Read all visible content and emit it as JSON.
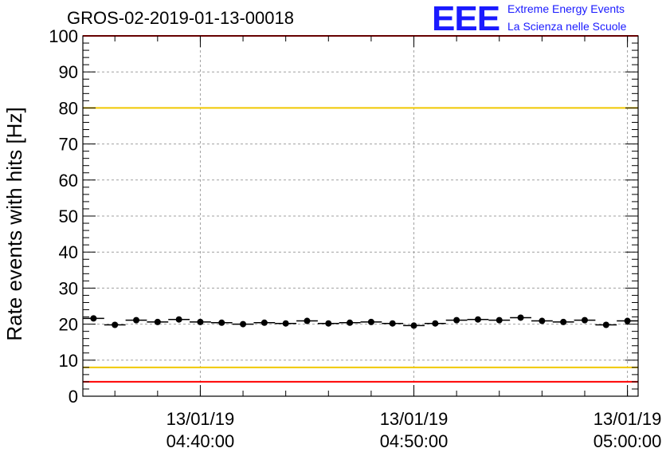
{
  "header": {
    "title": "GROS-02-2019-01-13-00018",
    "logo_text": "EEE",
    "logo_line1": "Extreme Energy Events",
    "logo_line2": "La Scienza nelle Scuole"
  },
  "colors": {
    "logo": "#1a1aff",
    "red_line": "#ff0000",
    "yellow_line": "#f0c800",
    "grid": "#a0a0a0",
    "points": "#000000"
  },
  "chart_data": {
    "type": "scatter",
    "title": "GROS-02-2019-01-13-00018",
    "ylabel": "Rate events with hits [Hz]",
    "xlabel": "",
    "ylim": [
      0,
      100
    ],
    "y_ticks": [
      0,
      10,
      20,
      30,
      40,
      50,
      60,
      70,
      80,
      90,
      100
    ],
    "x_range": [
      "04:34:30",
      "05:00:30"
    ],
    "x_ticks": [
      {
        "date": "13/01/19",
        "time": "04:40:00"
      },
      {
        "date": "13/01/19",
        "time": "04:50:00"
      },
      {
        "date": "13/01/19",
        "time": "05:00:00"
      }
    ],
    "x_minor_step_minutes": 2,
    "grid": true,
    "bin_minutes": 1,
    "series": [
      {
        "x": [
          "04:35:00",
          "04:36:00",
          "04:37:00",
          "04:38:00",
          "04:39:00",
          "04:40:00",
          "04:41:00",
          "04:42:00",
          "04:43:00",
          "04:44:00",
          "04:45:00",
          "04:46:00",
          "04:47:00",
          "04:48:00",
          "04:49:00",
          "04:50:00",
          "04:51:00",
          "04:52:00",
          "04:53:00",
          "04:54:00",
          "04:55:00",
          "04:56:00",
          "04:57:00",
          "04:58:00",
          "04:59:00",
          "05:00:00"
        ],
        "values": [
          21.6,
          19.8,
          21.1,
          20.6,
          21.3,
          20.6,
          20.4,
          20.0,
          20.4,
          20.2,
          20.9,
          20.2,
          20.4,
          20.6,
          20.2,
          19.6,
          20.2,
          21.1,
          21.3,
          21.1,
          21.8,
          20.9,
          20.6,
          21.1,
          19.8,
          20.9
        ]
      }
    ],
    "reference_lines": [
      {
        "y": 100,
        "color": "#ff0000"
      },
      {
        "y": 80,
        "color": "#f0c800"
      },
      {
        "y": 8,
        "color": "#f0c800"
      },
      {
        "y": 4,
        "color": "#ff0000"
      }
    ]
  }
}
